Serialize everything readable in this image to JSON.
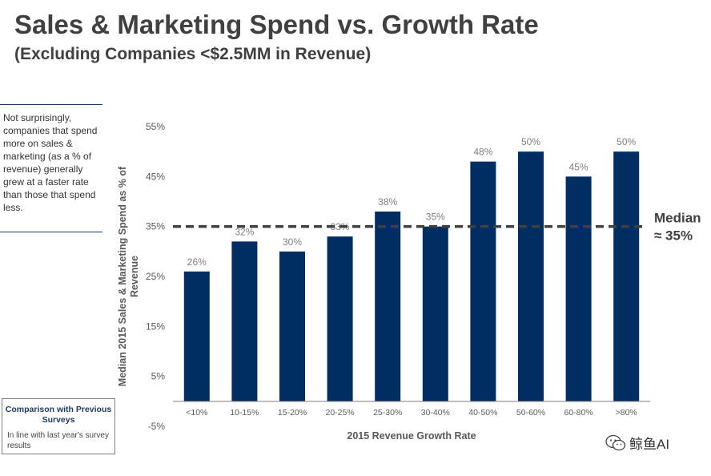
{
  "header": {
    "title": "Sales & Marketing Spend vs. Growth Rate",
    "subtitle": "(Excluding Companies <$2.5MM in Revenue)"
  },
  "sidebar": {
    "note": "Not surprisingly, companies that spend more on sales & marketing (as a % of revenue) generally grew at a faster rate than those that spend less.",
    "comparison_title": "Comparison with Previous Surveys",
    "comparison_text": "In line with last year's survey results"
  },
  "median": {
    "label_line1": "Median",
    "label_line2": "≈ 35%"
  },
  "watermark": {
    "icon": "wechat-icon",
    "text": "鲸鱼AI"
  },
  "colors": {
    "bar": "#002d62",
    "median_line": "#404040",
    "axis": "#7f7f7f",
    "text": "#404040"
  },
  "chart_data": {
    "type": "bar",
    "title": "Sales & Marketing Spend vs. Growth Rate",
    "xlabel": "2015 Revenue Growth Rate",
    "ylabel": "Median 2015 Sales & Marketing Spend as % of Revenue",
    "categories": [
      "<10%",
      "10-15%",
      "15-20%",
      "20-25%",
      "25-30%",
      "30-40%",
      "40-50%",
      "50-60%",
      "60-80%",
      ">80%"
    ],
    "values": [
      26,
      32,
      30,
      33,
      38,
      35,
      48,
      50,
      45,
      50
    ],
    "value_labels": [
      "26%",
      "32%",
      "30%",
      "33%",
      "38%",
      "35%",
      "48%",
      "50%",
      "45%",
      "50%"
    ],
    "ylim": [
      -5,
      55
    ],
    "yticks": [
      -5,
      5,
      15,
      25,
      35,
      45,
      55
    ],
    "ytick_labels": [
      "-5%",
      "5%",
      "15%",
      "25%",
      "35%",
      "45%",
      "55%"
    ],
    "median_value": 35,
    "grid": false
  }
}
